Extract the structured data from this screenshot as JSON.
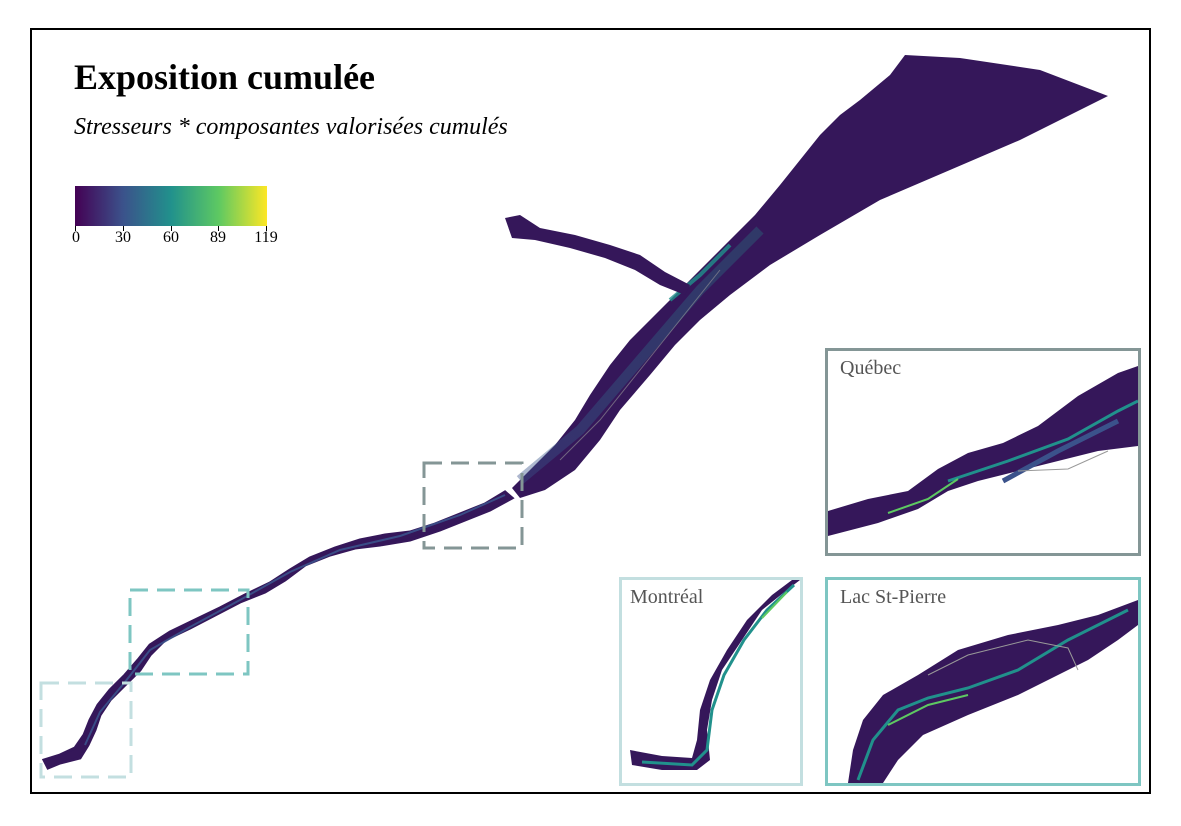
{
  "map": {
    "title": "Exposition cumulée",
    "subtitle": "Stresseurs * composantes valorisées cumulés"
  },
  "legend": {
    "ticks": [
      "0",
      "30",
      "60",
      "89",
      "119"
    ],
    "range": [
      0,
      119
    ],
    "palette": [
      "#440154",
      "#3b528b",
      "#21918c",
      "#5ec962",
      "#fde725"
    ]
  },
  "insets": {
    "quebec": {
      "label": "Québec",
      "color": "#849696"
    },
    "montreal": {
      "label": "Montréal",
      "color": "#c3dfe0"
    },
    "lac_st_pierre": {
      "label": "Lac St-Pierre",
      "color": "#7ec6c2"
    }
  },
  "colors": {
    "background_water": "#2a0f4a",
    "dark_purple": "#3b1b5a",
    "shoreline": "#999999"
  }
}
